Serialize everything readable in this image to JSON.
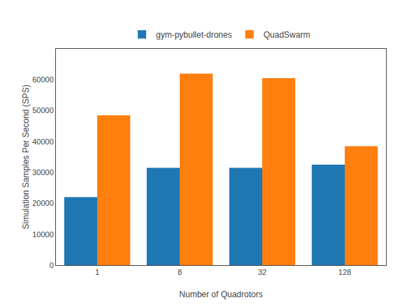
{
  "chart_data": {
    "type": "bar",
    "categories": [
      "1",
      "8",
      "32",
      "128"
    ],
    "series": [
      {
        "name": "gym-pybullet-drones",
        "color": "#1f77b4",
        "values": [
          22000,
          31500,
          31500,
          32500
        ]
      },
      {
        "name": "QuadSwarm",
        "color": "#ff7f0e",
        "values": [
          48500,
          62000,
          60500,
          38500
        ]
      }
    ],
    "xlabel": "Number of Quadrotors",
    "ylabel": "Simulation Samples Per Second (SPS)",
    "ylim": [
      0,
      70000
    ],
    "yticks": [
      0,
      10000,
      20000,
      30000,
      40000,
      50000,
      60000
    ],
    "grid": false,
    "legend": "top"
  }
}
